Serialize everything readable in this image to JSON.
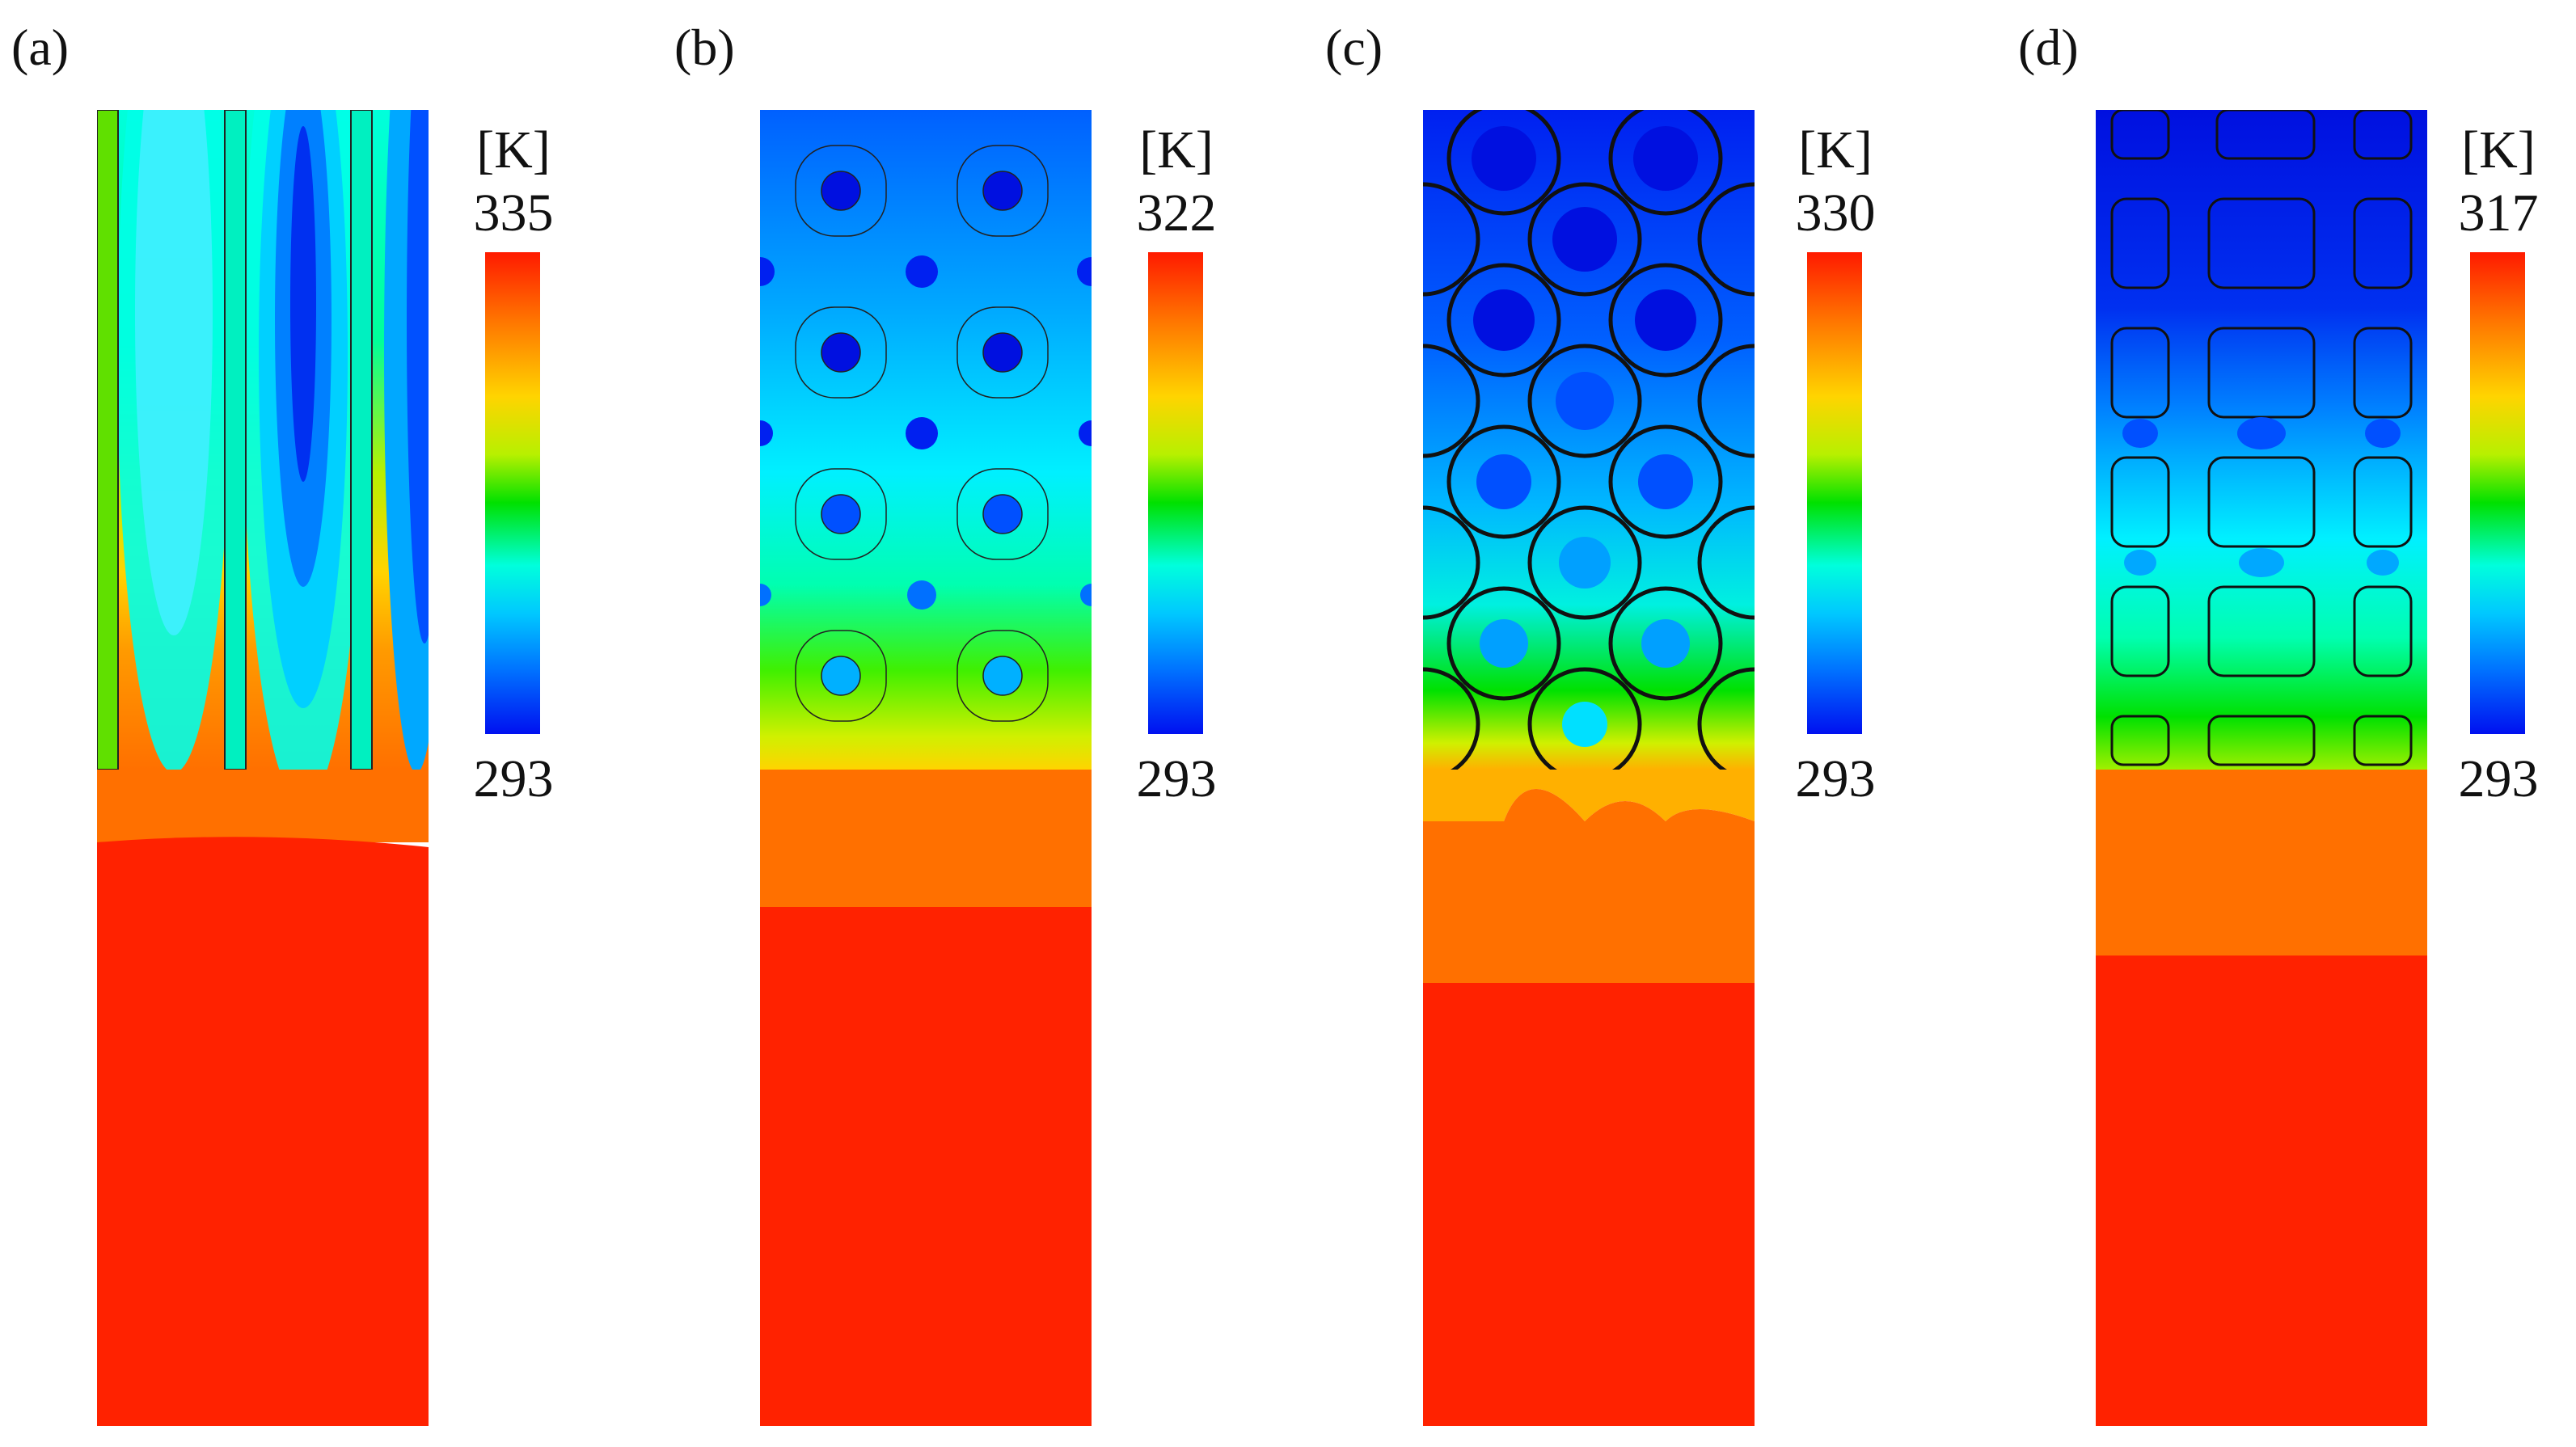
{
  "panels": [
    {
      "label": "(a)",
      "unit": "[K]",
      "max": "335",
      "min": "293"
    },
    {
      "label": "(b)",
      "unit": "[K]",
      "max": "322",
      "min": "293"
    },
    {
      "label": "(c)",
      "unit": "[K]",
      "max": "330",
      "min": "293"
    },
    {
      "label": "(d)",
      "unit": "[K]",
      "max": "317",
      "min": "293"
    }
  ],
  "colors": {
    "hot": "#ff2200",
    "warm": "#ff7000",
    "yellow": "#ffd400",
    "green": "#00e100",
    "cyan": "#00ffdc",
    "light_blue": "#00c0ff",
    "blue": "#0060ff",
    "dark_blue": "#0010e0"
  }
}
